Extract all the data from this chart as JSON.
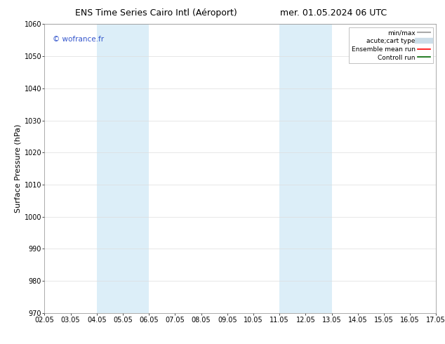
{
  "title_left": "ENS Time Series Cairo Intl (Aéroport)",
  "title_right": "mer. 01.05.2024 06 UTC",
  "ylabel": "Surface Pressure (hPa)",
  "ylim": [
    970,
    1060
  ],
  "yticks": [
    970,
    980,
    990,
    1000,
    1010,
    1020,
    1030,
    1040,
    1050,
    1060
  ],
  "x_labels": [
    "02.05",
    "03.05",
    "04.05",
    "05.05",
    "06.05",
    "07.05",
    "08.05",
    "09.05",
    "10.05",
    "11.05",
    "12.05",
    "13.05",
    "14.05",
    "15.05",
    "16.05",
    "17.05"
  ],
  "x_values": [
    0,
    1,
    2,
    3,
    4,
    5,
    6,
    7,
    8,
    9,
    10,
    11,
    12,
    13,
    14,
    15
  ],
  "shaded_regions": [
    {
      "xmin": 2,
      "xmax": 4,
      "color": "#dceef8"
    },
    {
      "xmin": 9,
      "xmax": 11,
      "color": "#dceef8"
    }
  ],
  "watermark": "© wofrance.fr",
  "watermark_color": "#3355cc",
  "legend_entries": [
    {
      "label": "min/max",
      "color": "#aaaaaa",
      "lw": 1.5,
      "style": "solid"
    },
    {
      "label": "acute;cart type",
      "color": "#ccdde8",
      "lw": 6,
      "style": "solid"
    },
    {
      "label": "Ensemble mean run",
      "color": "#ff0000",
      "lw": 1.2,
      "style": "solid"
    },
    {
      "label": "Controll run",
      "color": "#006600",
      "lw": 1.2,
      "style": "solid"
    }
  ],
  "bg_color": "#ffffff",
  "grid_color": "#dddddd",
  "title_fontsize": 9,
  "tick_fontsize": 7,
  "ylabel_fontsize": 8,
  "watermark_fontsize": 7.5,
  "legend_fontsize": 6.5
}
